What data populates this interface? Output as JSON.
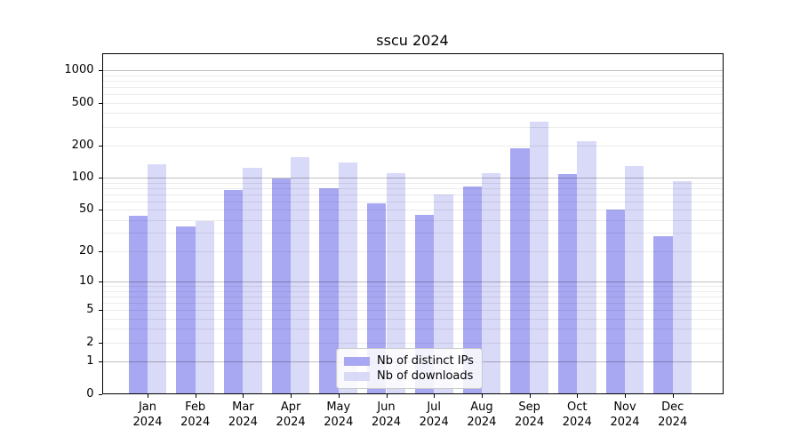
{
  "title": "sscu 2024",
  "chart_data": {
    "type": "bar",
    "title": "sscu 2024",
    "categories": [
      "Jan",
      "Feb",
      "Mar",
      "Apr",
      "May",
      "Jun",
      "Jul",
      "Aug",
      "Sep",
      "Oct",
      "Nov",
      "Dec"
    ],
    "category_year_label": "2024",
    "series": [
      {
        "name": "Nb of distinct IPs",
        "color": "#a8a8f2",
        "values": [
          44,
          35,
          77,
          99,
          80,
          58,
          45,
          83,
          187,
          108,
          50,
          28
        ]
      },
      {
        "name": "Nb of downloads",
        "color": "#d9d9f8",
        "values": [
          133,
          39,
          123,
          157,
          139,
          110,
          70,
          110,
          335,
          219,
          129,
          93
        ]
      }
    ],
    "xlabel": "",
    "ylabel": "",
    "y_scale": "symlog-like: position proportional to log10(value+1)",
    "y_ticks": [
      0,
      1,
      2,
      5,
      10,
      20,
      50,
      100,
      200,
      500,
      1000
    ],
    "y_minor_grid": [
      2,
      3,
      4,
      5,
      6,
      7,
      8,
      9,
      20,
      30,
      40,
      50,
      60,
      70,
      80,
      90,
      200,
      300,
      400,
      500,
      600,
      700,
      800,
      900
    ],
    "y_major_grid": [
      1,
      10,
      100,
      1000
    ],
    "ylim": [
      0,
      1450
    ],
    "grid": "horizontal, drawn over bars",
    "legend_position": "lower center",
    "colors": {
      "axis": "#000000",
      "grid_major": "rgba(0,0,0,0.25)",
      "grid_minor": "rgba(0,0,0,0.08)",
      "legend_border": "#cccccc",
      "background": "#ffffff"
    }
  }
}
